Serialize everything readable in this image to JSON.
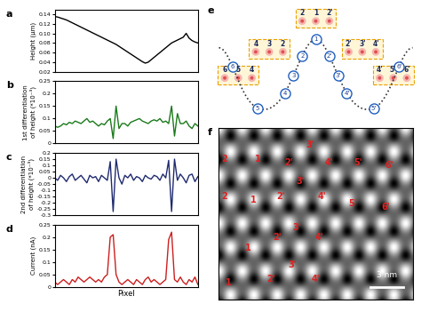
{
  "chart_data": [
    {
      "type": "line",
      "panel": "a",
      "ylabel": "Height (μm)",
      "x": [
        0,
        1,
        2,
        3,
        4,
        5,
        6,
        7,
        8,
        9,
        10,
        11,
        12,
        13,
        14,
        15,
        16,
        17,
        18,
        19,
        20,
        21,
        22,
        23,
        24,
        25,
        26,
        27,
        28,
        29,
        30,
        31,
        32,
        33,
        34,
        35,
        36,
        37,
        38,
        39,
        40,
        41,
        42,
        43,
        44,
        45,
        46,
        47,
        48,
        49
      ],
      "xlim": [
        0,
        49
      ],
      "ylim": [
        0.02,
        0.15
      ],
      "yticks": [
        0.02,
        0.04,
        0.06,
        0.08,
        {
          "value": 0.1,
          "label": "0.10"
        },
        0.12,
        0.14
      ],
      "tick_labels": "y",
      "color": "#000000",
      "values": [
        0.135,
        0.134,
        0.132,
        0.13,
        0.128,
        0.125,
        0.122,
        0.119,
        0.116,
        0.113,
        0.11,
        0.107,
        0.104,
        0.101,
        0.098,
        0.095,
        0.092,
        0.089,
        0.086,
        0.083,
        0.08,
        0.077,
        0.073,
        0.069,
        0.065,
        0.061,
        0.057,
        0.053,
        0.049,
        0.045,
        0.041,
        0.038,
        0.04,
        0.045,
        0.05,
        0.055,
        0.06,
        0.065,
        0.07,
        0.075,
        0.08,
        0.083,
        0.086,
        0.089,
        0.092,
        0.1,
        0.09,
        0.085,
        0.082,
        0.08
      ]
    },
    {
      "type": "line",
      "panel": "b",
      "ylabel": "1st differentiation\nof height (*10⁻³)",
      "x": [
        0,
        1,
        2,
        3,
        4,
        5,
        6,
        7,
        8,
        9,
        10,
        11,
        12,
        13,
        14,
        15,
        16,
        17,
        18,
        19,
        20,
        21,
        22,
        23,
        24,
        25,
        26,
        27,
        28,
        29,
        30,
        31,
        32,
        33,
        34,
        35,
        36,
        37,
        38,
        39,
        40,
        41,
        42,
        43,
        44,
        45,
        46,
        47,
        48,
        49
      ],
      "xlim": [
        0,
        49
      ],
      "ylim": [
        0,
        0.25
      ],
      "yticks": [
        0,
        0.05,
        0.1,
        0.15,
        0.2,
        0.25
      ],
      "tick_labels": "y",
      "color": "#1a7a1a",
      "values": [
        0.07,
        0.065,
        0.07,
        0.08,
        0.075,
        0.085,
        0.08,
        0.09,
        0.085,
        0.08,
        0.09,
        0.1,
        0.085,
        0.09,
        0.08,
        0.07,
        0.08,
        0.075,
        0.09,
        0.1,
        0.02,
        0.15,
        0.06,
        0.08,
        0.08,
        0.07,
        0.085,
        0.09,
        0.095,
        0.1,
        0.09,
        0.085,
        0.08,
        0.09,
        0.095,
        0.09,
        0.1,
        0.085,
        0.09,
        0.08,
        0.15,
        0.03,
        0.12,
        0.08,
        0.08,
        0.09,
        0.07,
        0.06,
        0.08,
        0.07
      ]
    },
    {
      "type": "line",
      "panel": "c",
      "ylabel": "2nd differentiation\nof height (*10⁻³)",
      "x": [
        0,
        1,
        2,
        3,
        4,
        5,
        6,
        7,
        8,
        9,
        10,
        11,
        12,
        13,
        14,
        15,
        16,
        17,
        18,
        19,
        20,
        21,
        22,
        23,
        24,
        25,
        26,
        27,
        28,
        29,
        30,
        31,
        32,
        33,
        34,
        35,
        36,
        37,
        38,
        39,
        40,
        41,
        42,
        43,
        44,
        45,
        46,
        47,
        48,
        49
      ],
      "xlim": [
        0,
        49
      ],
      "ylim": [
        -0.3,
        0.2
      ],
      "yticks": [
        -0.3,
        -0.25,
        -0.2,
        -0.15,
        -0.1,
        -0.05,
        0,
        0.05,
        0.1,
        0.15,
        0.2
      ],
      "tick_labels": "y",
      "color": "#1f2a6e",
      "values": [
        0,
        -0.02,
        0.02,
        0,
        -0.03,
        0.01,
        0.03,
        -0.02,
        0,
        0.02,
        -0.01,
        -0.04,
        0.02,
        0,
        0.01,
        -0.03,
        0.02,
        0,
        -0.02,
        0.13,
        -0.27,
        0.15,
        0,
        -0.05,
        0.02,
        0,
        0.03,
        -0.02,
        0.01,
        0,
        -0.03,
        0.02,
        0,
        -0.01,
        0.02,
        0.01,
        -0.02,
        0.03,
        0,
        0.14,
        -0.27,
        0.15,
        -0.02,
        0.03,
        0,
        -0.04,
        0.02,
        0.03,
        -0.03,
        0.01
      ]
    },
    {
      "type": "line",
      "panel": "d",
      "ylabel": "Current (nA)",
      "xlabel": "Pixel",
      "x": [
        0,
        1,
        2,
        3,
        4,
        5,
        6,
        7,
        8,
        9,
        10,
        11,
        12,
        13,
        14,
        15,
        16,
        17,
        18,
        19,
        20,
        21,
        22,
        23,
        24,
        25,
        26,
        27,
        28,
        29,
        30,
        31,
        32,
        33,
        34,
        35,
        36,
        37,
        38,
        39,
        40,
        41,
        42,
        43,
        44,
        45,
        46,
        47,
        48,
        49
      ],
      "xlim": [
        0,
        49
      ],
      "ylim": [
        0,
        0.25
      ],
      "yticks": [
        0,
        0.05,
        0.1,
        0.15,
        0.2,
        0.25
      ],
      "tick_labels": "y",
      "color": "#cc1f1f",
      "values": [
        0.02,
        0.01,
        0.02,
        0.03,
        0.02,
        0.01,
        0.03,
        0.02,
        0.04,
        0.03,
        0.02,
        0.03,
        0.04,
        0.03,
        0.02,
        0.03,
        0.02,
        0.04,
        0.05,
        0.2,
        0.21,
        0.05,
        0.02,
        0.01,
        0.02,
        0.03,
        0.02,
        0.01,
        0.03,
        0.02,
        0.01,
        0.03,
        0.04,
        0.02,
        0.03,
        0.02,
        0.01,
        0.02,
        0.03,
        0.19,
        0.22,
        0.03,
        0.02,
        0.04,
        0.02,
        0.01,
        0.03,
        0.02,
        0.04,
        0.01
      ]
    }
  ],
  "diagram": {
    "panel": "e",
    "circles": [
      "1",
      "2",
      "3",
      "4",
      "5",
      "6",
      "2'",
      "3'",
      "4'",
      "5'",
      "6'"
    ],
    "boxes": [
      [
        "2",
        "1",
        "2'"
      ],
      [
        "4",
        "3",
        "2"
      ],
      [
        "6",
        "5",
        "4"
      ],
      [
        "2'",
        "3'",
        "4'"
      ],
      [
        "4'",
        "5'",
        "6'"
      ]
    ]
  },
  "image": {
    "panel": "f",
    "labels": [
      "2",
      "1",
      "2'",
      "3'",
      "4'",
      "5'",
      "6'",
      "2",
      "1",
      "2'",
      "3'",
      "4'",
      "5'",
      "6'",
      "3'",
      "2'",
      "4'",
      "1",
      "1",
      "2'",
      "3'",
      "4'"
    ],
    "scale_bar": "3 nm"
  }
}
